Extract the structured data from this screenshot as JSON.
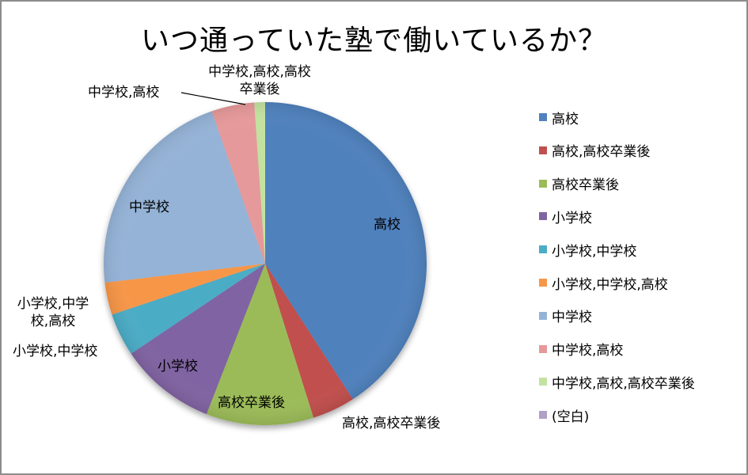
{
  "chart_data": {
    "type": "pie",
    "title": "いつ通っていた塾で働いているか？",
    "categories": [
      "高校",
      "高校,高校卒業後",
      "高校卒業後",
      "小学校",
      "小学校,中学校",
      "小学校,中学校,高校",
      "中学校",
      "中学校,高校",
      "中学校,高校,高校卒業後",
      "(空白)"
    ],
    "values": [
      38,
      4,
      10,
      9,
      4,
      3,
      20,
      4,
      1,
      0
    ],
    "percent_estimate": [
      40.9,
      4.3,
      10.8,
      9.7,
      4.3,
      3.2,
      21.5,
      4.3,
      1.1,
      0
    ],
    "colors": [
      "#4f81bd",
      "#c0504d",
      "#9bbb59",
      "#8064a2",
      "#4bacc6",
      "#f79646",
      "#95b3d7",
      "#e6999a",
      "#c3e2a0",
      "#b1a0c7"
    ],
    "start_angle": "12 o'clock, clockwise",
    "legend_position": "right",
    "data_labels": "category name"
  },
  "title": "いつ通っていた塾で働いているか？",
  "labels": {
    "koukou": "高校",
    "koukou_sotsugyougo_combo": "高校,高校卒業後",
    "sotsugyougo": "高校卒業後",
    "shougakkou": "小学校",
    "sho_chu": "小学校,中学校",
    "sho_chu_kou_line1": "小学校,中学",
    "sho_chu_kou_line2": "校,高校",
    "chugakkou": "中学校",
    "chu_kou": "中学校,高校",
    "chu_kou_sotsu_line1": "中学校,高校,高校",
    "chu_kou_sotsu_line2": "卒業後"
  },
  "legend": {
    "items": [
      {
        "label": "高校",
        "color": "#4f81bd"
      },
      {
        "label": "高校,高校卒業後",
        "color": "#c0504d"
      },
      {
        "label": "高校卒業後",
        "color": "#9bbb59"
      },
      {
        "label": "小学校",
        "color": "#8064a2"
      },
      {
        "label": "小学校,中学校",
        "color": "#4bacc6"
      },
      {
        "label": "小学校,中学校,高校",
        "color": "#f79646"
      },
      {
        "label": "中学校",
        "color": "#95b3d7"
      },
      {
        "label": "中学校,高校",
        "color": "#e6999a"
      },
      {
        "label": "中学校,高校,高校卒業後",
        "color": "#c3e2a0"
      },
      {
        "label": "(空白)",
        "color": "#b1a0c7"
      }
    ]
  }
}
